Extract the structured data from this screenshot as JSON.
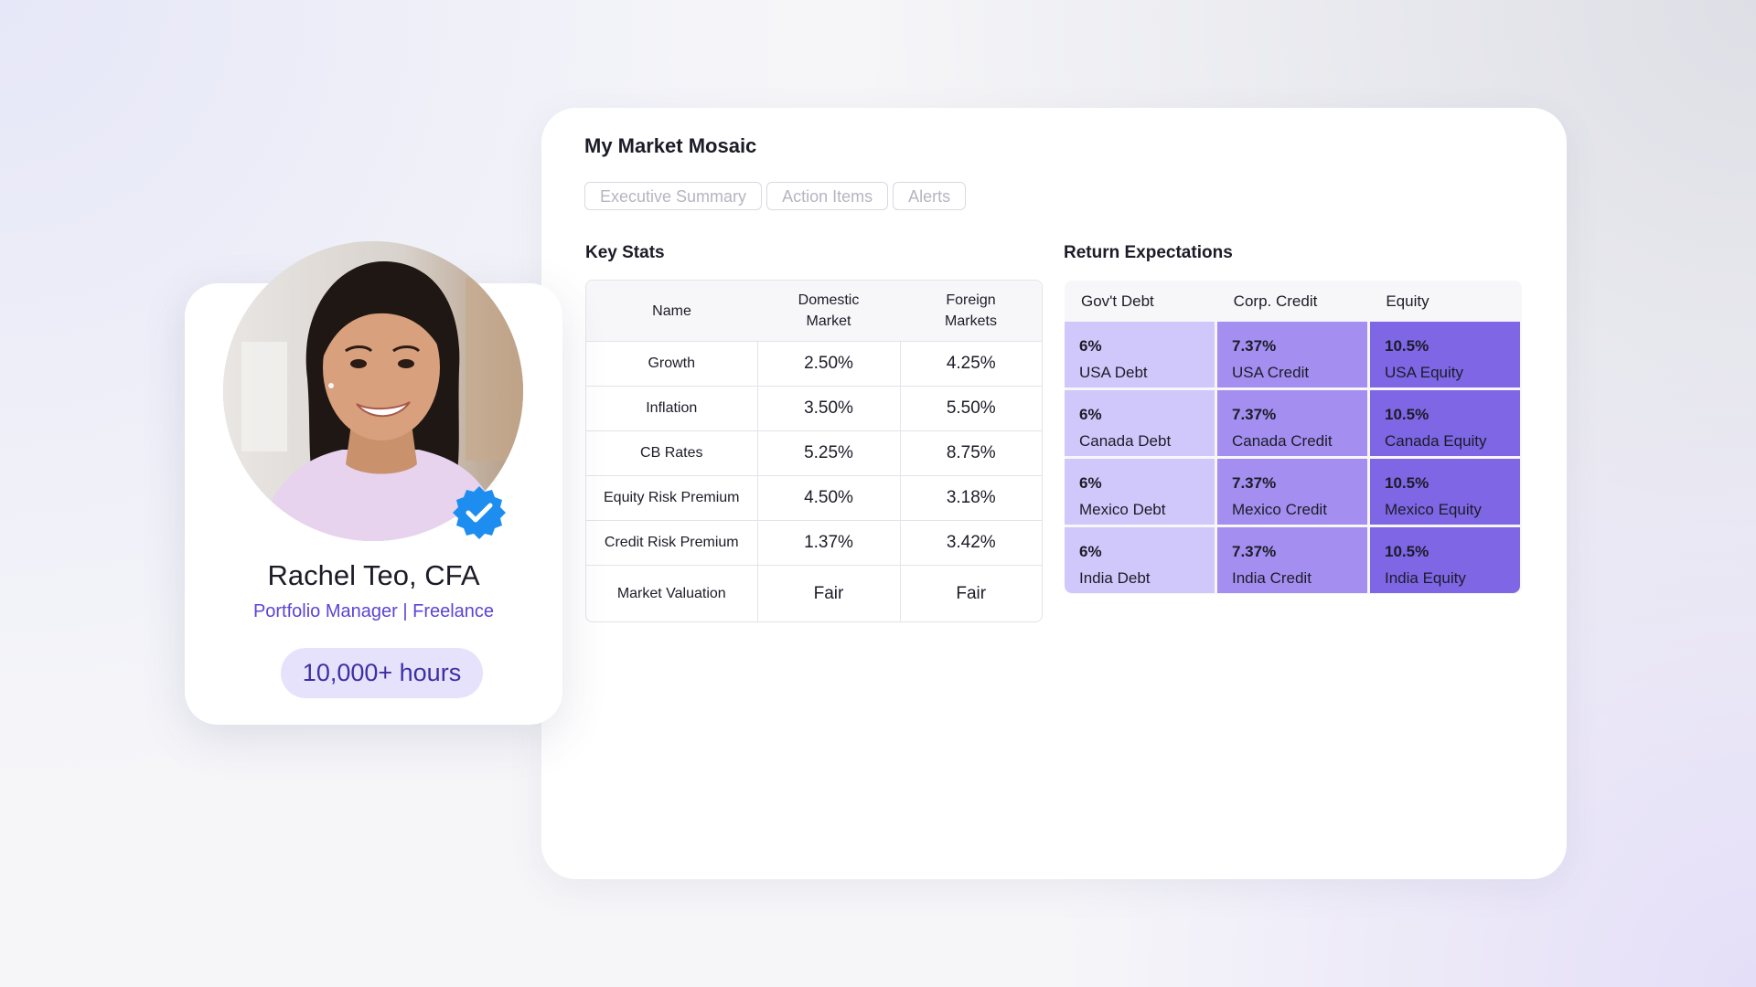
{
  "dashboard": {
    "title": "My Market Mosaic",
    "tabs": [
      {
        "label": "Executive Summary"
      },
      {
        "label": "Action Items"
      },
      {
        "label": "Alerts"
      }
    ]
  },
  "key_stats": {
    "title": "Key Stats",
    "headers": {
      "name": "Name",
      "domestic_line1": "Domestic",
      "domestic_line2": "Market",
      "foreign_line1": "Foreign",
      "foreign_line2": "Markets"
    },
    "rows": [
      {
        "name": "Growth",
        "domestic": "2.50%",
        "foreign": "4.25%"
      },
      {
        "name": "Inflation",
        "domestic": "3.50%",
        "foreign": "5.50%"
      },
      {
        "name": "CB Rates",
        "domestic": "5.25%",
        "foreign": "8.75%"
      },
      {
        "name": "Equity Risk Premium",
        "domestic": "4.50%",
        "foreign": "3.18%"
      },
      {
        "name": "Credit Risk Premium",
        "domestic": "1.37%",
        "foreign": "3.42%"
      },
      {
        "name": "Market Valuation",
        "domestic": "Fair",
        "foreign": "Fair"
      }
    ]
  },
  "return_expectations": {
    "title": "Return Expectations",
    "headers": [
      "Gov't Debt",
      "Corp. Credit",
      "Equity"
    ],
    "tone_colors": {
      "debt": "#d0c8fa",
      "credit": "#a48ff0",
      "equity": "#7e66e4"
    },
    "rows": [
      {
        "debt": {
          "pct": "6%",
          "label": "USA Debt"
        },
        "credit": {
          "pct": "7.37%",
          "label": "USA Credit"
        },
        "equity": {
          "pct": "10.5%",
          "label": "USA Equity"
        }
      },
      {
        "debt": {
          "pct": "6%",
          "label": "Canada Debt"
        },
        "credit": {
          "pct": "7.37%",
          "label": "Canada Credit"
        },
        "equity": {
          "pct": "10.5%",
          "label": "Canada Equity"
        }
      },
      {
        "debt": {
          "pct": "6%",
          "label": "Mexico Debt"
        },
        "credit": {
          "pct": "7.37%",
          "label": "Mexico Credit"
        },
        "equity": {
          "pct": "10.5%",
          "label": "Mexico Equity"
        }
      },
      {
        "debt": {
          "pct": "6%",
          "label": "India Debt"
        },
        "credit": {
          "pct": "7.37%",
          "label": "India Credit"
        },
        "equity": {
          "pct": "10.5%",
          "label": "India Equity"
        }
      }
    ]
  },
  "profile": {
    "name": "Rachel Teo, CFA",
    "role": "Portfolio Manager | Freelance",
    "hours": "10,000+ hours",
    "badge_icon": "verified-check-icon",
    "accent_color": "#5a45d6"
  }
}
